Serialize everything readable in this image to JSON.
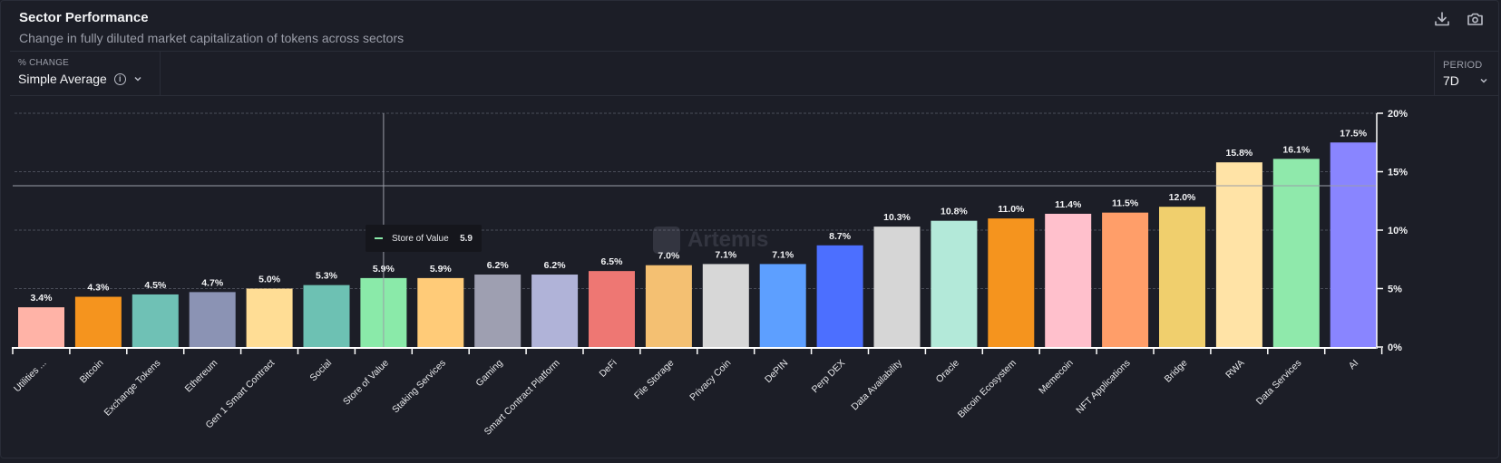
{
  "header": {
    "title": "Sector Performance",
    "subtitle": "Change in fully diluted market capitalization of tokens across sectors",
    "icons": [
      "download-icon",
      "camera-icon"
    ]
  },
  "controls": {
    "metric_label": "% CHANGE",
    "metric_value": "Simple Average",
    "period_label": "PERIOD",
    "period_value": "7D"
  },
  "tooltip": {
    "name": "Store of Value",
    "value": "5.9",
    "color": "#8aeaa9"
  },
  "watermark": "Artemis",
  "chart_data": {
    "type": "bar",
    "title": "Sector Performance",
    "subtitle": "Change in fully diluted market capitalization of tokens across sectors",
    "xlabel": "",
    "ylabel": "% Change",
    "ylim": [
      0,
      20
    ],
    "yticks": [
      0,
      5,
      10,
      15,
      20
    ],
    "ytick_labels": [
      "0%",
      "5%",
      "10%",
      "15%",
      "20%"
    ],
    "y_axis_position": "right",
    "grid": true,
    "legend": "none",
    "categories": [
      "Utilities ...",
      "Bitcoin",
      "Exchange Tokens",
      "Ethereum",
      "Gen 1 Smart Contract",
      "Social",
      "Store of Value",
      "Staking Services",
      "Gaming",
      "Smart Contract Platform",
      "DeFi",
      "File Storage",
      "Privacy Coin",
      "DePIN",
      "Perp DEX",
      "Data Availability",
      "Oracle",
      "Bitcoin Ecosystem",
      "Memecoin",
      "NFT Applications",
      "Bridge",
      "RWA",
      "Data Services",
      "AI"
    ],
    "values": [
      3.4,
      4.3,
      4.5,
      4.7,
      5.0,
      5.3,
      5.9,
      5.9,
      6.2,
      6.2,
      6.5,
      7.0,
      7.1,
      7.1,
      8.7,
      10.3,
      10.8,
      11.0,
      11.4,
      11.5,
      12.0,
      15.8,
      16.1,
      17.5
    ],
    "data_labels": [
      "3.4%",
      "4.3%",
      "4.5%",
      "4.7%",
      "5.0%",
      "5.3%",
      "5.9%",
      "5.9%",
      "6.2%",
      "6.2%",
      "6.5%",
      "7.0%",
      "7.1%",
      "7.1%",
      "8.7%",
      "10.3%",
      "10.8%",
      "11.0%",
      "11.4%",
      "11.5%",
      "12.0%",
      "15.8%",
      "16.1%",
      "17.5%"
    ],
    "colors": [
      "#ffb3a7",
      "#f5941e",
      "#6fc1b5",
      "#8b93b4",
      "#ffdd95",
      "#6dc1b3",
      "#8aeaa9",
      "#ffcb78",
      "#9e9fb1",
      "#b0b3d8",
      "#ee7773",
      "#f4c072",
      "#d7d7d7",
      "#5d9fff",
      "#4c6fff",
      "#d6d6d6",
      "#b3e9d9",
      "#f5941e",
      "#ffc0cc",
      "#ff9e69",
      "#f0cf6d",
      "#ffe3a6",
      "#8fe9ab",
      "#8985ff"
    ],
    "crosshair": {
      "category": "Store of Value",
      "y_value": 13.8
    }
  }
}
